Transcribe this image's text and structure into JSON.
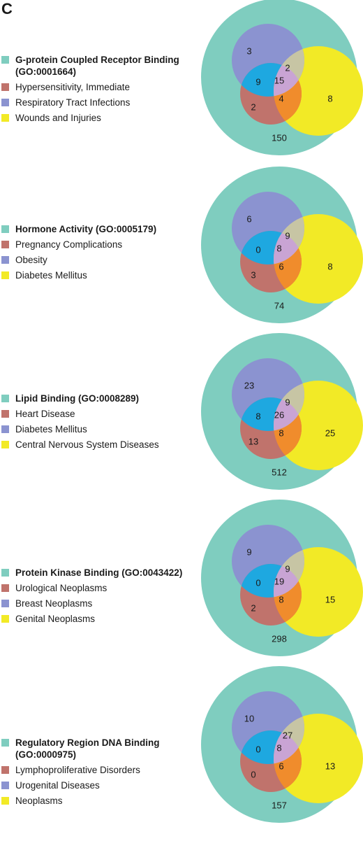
{
  "panel_label": "C",
  "colors": {
    "outer": "#7fcdbf",
    "set_a": "#c0736c",
    "set_b": "#8b93d0",
    "set_c": "#f2ea26",
    "ab": "#1ea8e0",
    "ac": "#f08c2c",
    "bc": "#c7c5a4",
    "abc": "#c9a4d4"
  },
  "panels": [
    {
      "legend": [
        {
          "label": "G-protein Coupled Receptor Binding (GO:0001664)",
          "color": "outer",
          "bold": true
        },
        {
          "label": "Hypersensitivity, Immediate",
          "color": "set_a",
          "bold": false
        },
        {
          "label": "Respiratory Tract Infections",
          "color": "set_b",
          "bold": false
        },
        {
          "label": "Wounds and Injuries",
          "color": "set_c",
          "bold": false
        }
      ],
      "counts": {
        "b_only": "3",
        "bc": "2",
        "abc": "15",
        "ab": "9",
        "ac": "4",
        "a_only": "2",
        "c_only": "8",
        "outer": "150"
      }
    },
    {
      "legend": [
        {
          "label": "Hormone Activity  (GO:0005179)",
          "color": "outer",
          "bold": true
        },
        {
          "label": "Pregnancy Complications",
          "color": "set_a",
          "bold": false
        },
        {
          "label": "Obesity",
          "color": "set_b",
          "bold": false
        },
        {
          "label": "Diabetes Mellitus",
          "color": "set_c",
          "bold": false
        }
      ],
      "counts": {
        "b_only": "6",
        "bc": "9",
        "abc": "8",
        "ab": "0",
        "ac": "6",
        "a_only": "3",
        "c_only": "8",
        "outer": "74"
      }
    },
    {
      "legend": [
        {
          "label": "Lipid Binding (GO:0008289)",
          "color": "outer",
          "bold": true
        },
        {
          "label": "Heart Disease",
          "color": "set_a",
          "bold": false
        },
        {
          "label": "Diabetes Mellitus",
          "color": "set_b",
          "bold": false
        },
        {
          "label": "Central Nervous System Diseases",
          "color": "set_c",
          "bold": false
        }
      ],
      "counts": {
        "b_only": "23",
        "bc": "9",
        "abc": "26",
        "ab": "8",
        "ac": "8",
        "a_only": "13",
        "c_only": "25",
        "outer": "512"
      }
    },
    {
      "legend": [
        {
          "label": "Protein Kinase Binding (GO:0043422)",
          "color": "outer",
          "bold": true
        },
        {
          "label": "Urological Neoplasms",
          "color": "set_a",
          "bold": false
        },
        {
          "label": "Breast Neoplasms",
          "color": "set_b",
          "bold": false
        },
        {
          "label": "Genital Neoplasms",
          "color": "set_c",
          "bold": false
        }
      ],
      "counts": {
        "b_only": "9",
        "bc": "9",
        "abc": "19",
        "ab": "0",
        "ac": "8",
        "a_only": "2",
        "c_only": "15",
        "outer": "298"
      }
    },
    {
      "legend": [
        {
          "label": "Regulatory Region DNA Binding (GO:0000975)",
          "color": "outer",
          "bold": true
        },
        {
          "label": "Lymphoproliferative Disorders",
          "color": "set_a",
          "bold": false
        },
        {
          "label": "Urogenital Diseases",
          "color": "set_b",
          "bold": false
        },
        {
          "label": "Neoplasms",
          "color": "set_c",
          "bold": false
        }
      ],
      "counts": {
        "b_only": "10",
        "bc": "27",
        "abc": "8",
        "ab": "0",
        "ac": "6",
        "a_only": "0",
        "c_only": "13",
        "outer": "157"
      }
    }
  ]
}
